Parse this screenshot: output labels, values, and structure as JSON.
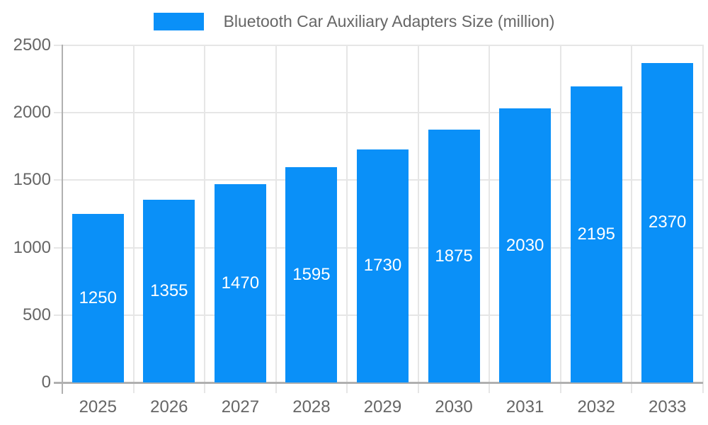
{
  "chart_data": {
    "type": "bar",
    "title": "Bluetooth Car Auxiliary Adapters Size (million)",
    "categories": [
      "2025",
      "2026",
      "2027",
      "2028",
      "2029",
      "2030",
      "2031",
      "2032",
      "2033"
    ],
    "values": [
      1250,
      1355,
      1470,
      1595,
      1730,
      1875,
      2030,
      2195,
      2370
    ],
    "xlabel": "",
    "ylabel": "",
    "ylim": [
      0,
      2500
    ],
    "yticks": [
      0,
      500,
      1000,
      1500,
      2000,
      2500
    ],
    "grid": true,
    "legend_position": "top",
    "colors": {
      "bar": "#0a90f8",
      "value_label": "#ffffff",
      "axis_text": "#666666",
      "grid_line": "#e6e6e6",
      "axis_line": "#b0b0b0"
    }
  },
  "legend": {
    "label": "Bluetooth Car Auxiliary Adapters Size (million)"
  }
}
